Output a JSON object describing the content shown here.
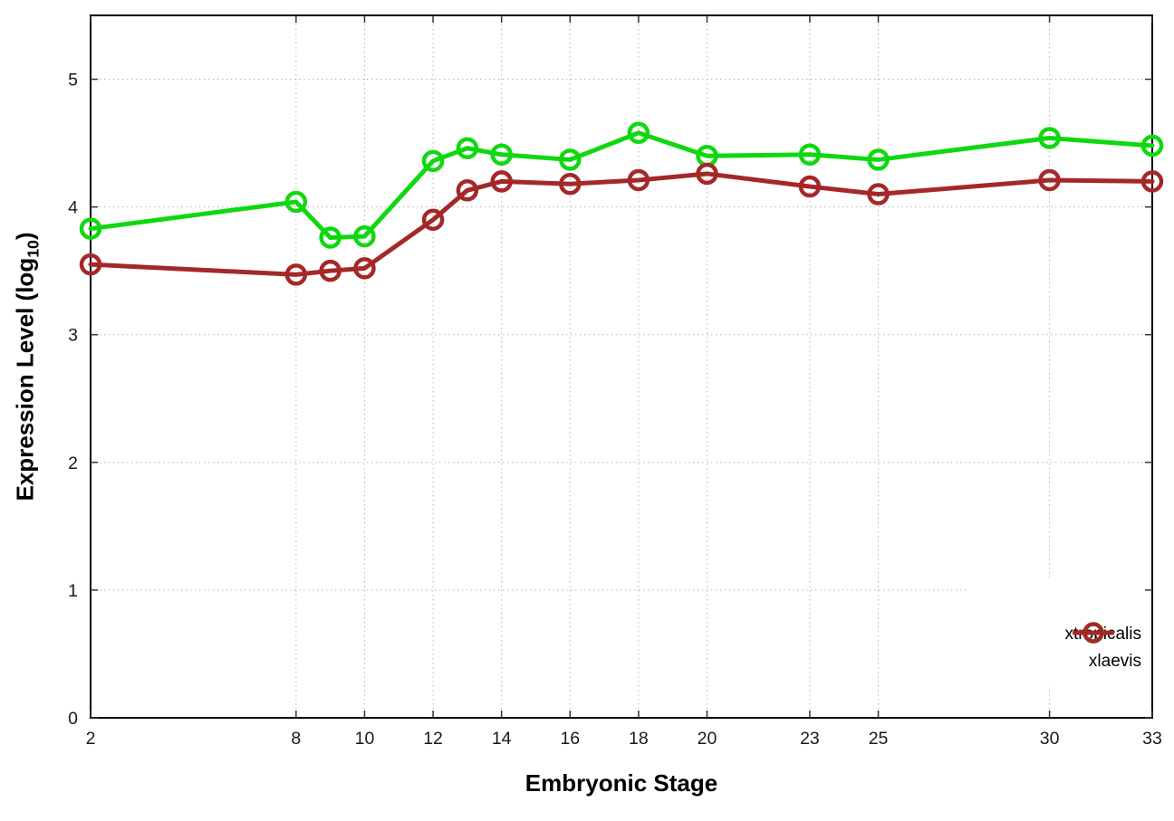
{
  "chart_data": {
    "type": "line",
    "xlabel": "Embryonic Stage",
    "ylabel": "Expression Level (log10)",
    "ylabel_parts": {
      "pre": "Expression Level (log",
      "sub": "10",
      "post": ")"
    },
    "xlim": [
      2,
      33
    ],
    "ylim": [
      0,
      5.5
    ],
    "x_ticks": [
      2,
      8,
      10,
      12,
      14,
      16,
      18,
      20,
      23,
      25,
      30,
      33
    ],
    "y_ticks": [
      0,
      1,
      2,
      3,
      4,
      5
    ],
    "grid": true,
    "legend_position": "bottom-right",
    "x": [
      2,
      8,
      9,
      10,
      12,
      13,
      14,
      16,
      18,
      20,
      23,
      25,
      30,
      33
    ],
    "series": [
      {
        "name": "xtropicalis",
        "color": "#10d810",
        "values": [
          3.83,
          4.04,
          3.76,
          3.77,
          4.36,
          4.46,
          4.41,
          4.37,
          4.58,
          4.4,
          4.41,
          4.37,
          4.54,
          4.48
        ]
      },
      {
        "name": "xlaevis",
        "color": "#a52828",
        "values": [
          3.55,
          3.47,
          3.5,
          3.52,
          3.9,
          4.13,
          4.2,
          4.18,
          4.21,
          4.26,
          4.16,
          4.1,
          4.21,
          4.2
        ]
      }
    ],
    "style": {
      "grid_color": "#b5b5b5",
      "border_color": "#000000",
      "tick_color": "#333333",
      "tick_label_color": "#1a1a1a",
      "background": "#ffffff"
    }
  }
}
